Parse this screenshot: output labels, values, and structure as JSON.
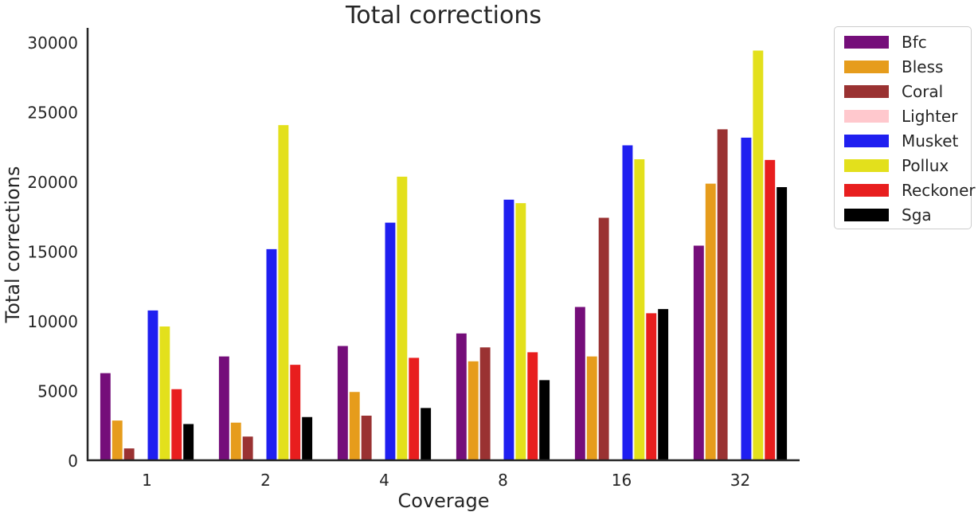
{
  "chart_data": {
    "type": "bar",
    "title": "Total corrections",
    "xlabel": "Coverage",
    "ylabel": "Total corrections",
    "categories": [
      "1",
      "2",
      "4",
      "8",
      "16",
      "32"
    ],
    "ylim": [
      0,
      31000
    ],
    "yticks": [
      0,
      5000,
      10000,
      15000,
      20000,
      25000,
      30000
    ],
    "legend_position": "outside-right",
    "grid": false,
    "series": [
      {
        "name": "Bfc",
        "color": "#750e7a",
        "values": [
          6250,
          7450,
          8200,
          9100,
          11000,
          15400
        ]
      },
      {
        "name": "Bless",
        "color": "#e69c1c",
        "values": [
          2850,
          2700,
          4900,
          7100,
          7450,
          19850
        ]
      },
      {
        "name": "Coral",
        "color": "#9a3232",
        "values": [
          850,
          1700,
          3200,
          8100,
          17400,
          23750
        ]
      },
      {
        "name": "Lighter",
        "color": "#ffc8cd",
        "values": [
          0,
          0,
          0,
          0,
          0,
          0
        ]
      },
      {
        "name": "Musket",
        "color": "#1f1ff0",
        "values": [
          10750,
          15150,
          17050,
          18700,
          22600,
          23150
        ]
      },
      {
        "name": "Pollux",
        "color": "#e3e01c",
        "values": [
          9600,
          24050,
          20350,
          18450,
          21600,
          29400
        ]
      },
      {
        "name": "Reckoner",
        "color": "#e81e1e",
        "values": [
          5100,
          6850,
          7350,
          7750,
          10550,
          21550
        ]
      },
      {
        "name": "Sga",
        "color": "#000000",
        "values": [
          2600,
          3100,
          3750,
          5750,
          10850,
          19600
        ]
      }
    ]
  }
}
